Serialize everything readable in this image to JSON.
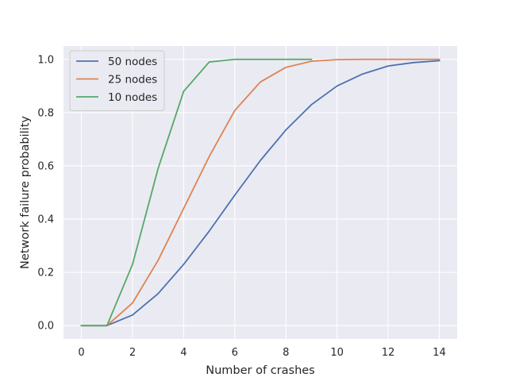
{
  "chart_data": {
    "type": "line",
    "title": "",
    "xlabel": "Number of crashes",
    "ylabel": "Network failure probability",
    "xlim": [
      -0.7,
      14.7
    ],
    "ylim": [
      -0.05,
      1.05
    ],
    "xticks": [
      0,
      2,
      4,
      6,
      8,
      10,
      12,
      14
    ],
    "xtick_labels": [
      "0",
      "2",
      "4",
      "6",
      "8",
      "10",
      "12",
      "14"
    ],
    "yticks": [
      0.0,
      0.2,
      0.4,
      0.6,
      0.8,
      1.0
    ],
    "ytick_labels": [
      "0.0",
      "0.2",
      "0.4",
      "0.6",
      "0.8",
      "1.0"
    ],
    "grid": true,
    "legend_position": "top-left",
    "series": [
      {
        "name": "50 nodes",
        "color": "#4c72b0",
        "x": [
          0,
          1,
          2,
          3,
          4,
          5,
          6,
          7,
          8,
          9,
          10,
          11,
          12,
          13,
          14
        ],
        "y": [
          0.0,
          0.0,
          0.04,
          0.12,
          0.23,
          0.355,
          0.49,
          0.62,
          0.735,
          0.83,
          0.9,
          0.945,
          0.975,
          0.988,
          0.995
        ]
      },
      {
        "name": "25 nodes",
        "color": "#dd8452",
        "x": [
          0,
          1,
          2,
          3,
          4,
          5,
          6,
          7,
          8,
          9,
          10,
          11,
          12,
          13,
          14
        ],
        "y": [
          0.0,
          0.0,
          0.085,
          0.245,
          0.44,
          0.635,
          0.808,
          0.915,
          0.97,
          0.993,
          0.999,
          1.0,
          1.0,
          1.0,
          1.0
        ]
      },
      {
        "name": "10 nodes",
        "color": "#55a868",
        "x": [
          0,
          1,
          2,
          3,
          4,
          5,
          6,
          7,
          8,
          9
        ],
        "y": [
          0.0,
          0.0,
          0.23,
          0.59,
          0.88,
          0.99,
          1.0,
          1.0,
          1.0,
          1.0
        ]
      }
    ]
  }
}
